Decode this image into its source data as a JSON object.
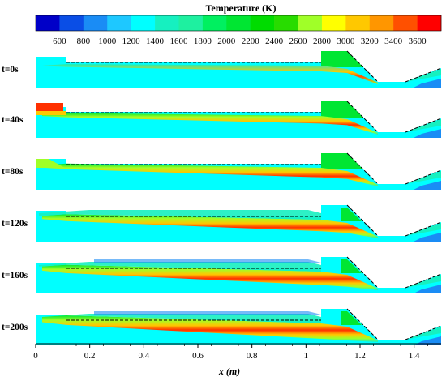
{
  "colorbar": {
    "title": "Temperature (K)",
    "ticks": [
      "600",
      "800",
      "1000",
      "1200",
      "1400",
      "1600",
      "1800",
      "2000",
      "2200",
      "2400",
      "2600",
      "2800",
      "3000",
      "3200",
      "3400",
      "3600"
    ],
    "colors": [
      "#0000c8",
      "#0a4ee6",
      "#1a8cf5",
      "#1ec8ff",
      "#00ffff",
      "#16f0c0",
      "#1ef0a0",
      "#00f060",
      "#00e632",
      "#00dc00",
      "#28dc00",
      "#a0ff28",
      "#ffff00",
      "#ffc800",
      "#ff9600",
      "#ff5000",
      "#ff0000"
    ]
  },
  "panels": [
    {
      "time_label": "t=0s"
    },
    {
      "time_label": "t=40s"
    },
    {
      "time_label": "t=80s"
    },
    {
      "time_label": "t=120s"
    },
    {
      "time_label": "t=160s"
    },
    {
      "time_label": "t=200s"
    }
  ],
  "x_axis": {
    "label": "x (m)",
    "ticks": [
      "0",
      "0.2",
      "0.4",
      "0.6",
      "0.8",
      "1",
      "1.2",
      "1.4"
    ]
  }
}
